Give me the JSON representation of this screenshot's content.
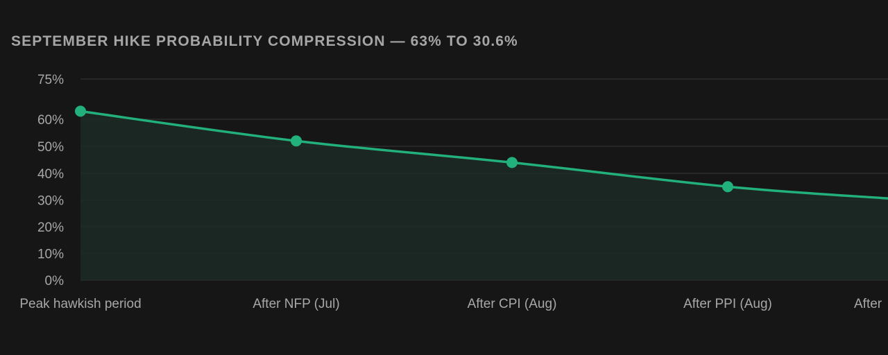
{
  "chart_data": {
    "type": "area",
    "title": "SEPTEMBER HIKE PROBABILITY COMPRESSION — 63% TO 30.6%",
    "xlabel": "",
    "ylabel": "",
    "categories": [
      "Peak hawkish period",
      "After NFP (Jul)",
      "After CPI (Aug)",
      "After PPI (Aug)",
      "After"
    ],
    "series": [
      {
        "values": [
          63,
          52,
          44,
          35,
          30.6
        ]
      }
    ],
    "y_ticks": [
      "0%",
      "10%",
      "20%",
      "30%",
      "40%",
      "50%",
      "60%",
      "75%"
    ],
    "y_tick_values": [
      0,
      10,
      20,
      30,
      40,
      50,
      60,
      75
    ],
    "ylim": [
      0,
      75
    ],
    "grid": true,
    "legend": "none",
    "colors": {
      "line": "#22b07d",
      "fill": "#1c2a24",
      "background": "#161616",
      "grid": "#2d2d2d",
      "text": "#a8a8a8",
      "title": "#a6a6a6"
    }
  }
}
